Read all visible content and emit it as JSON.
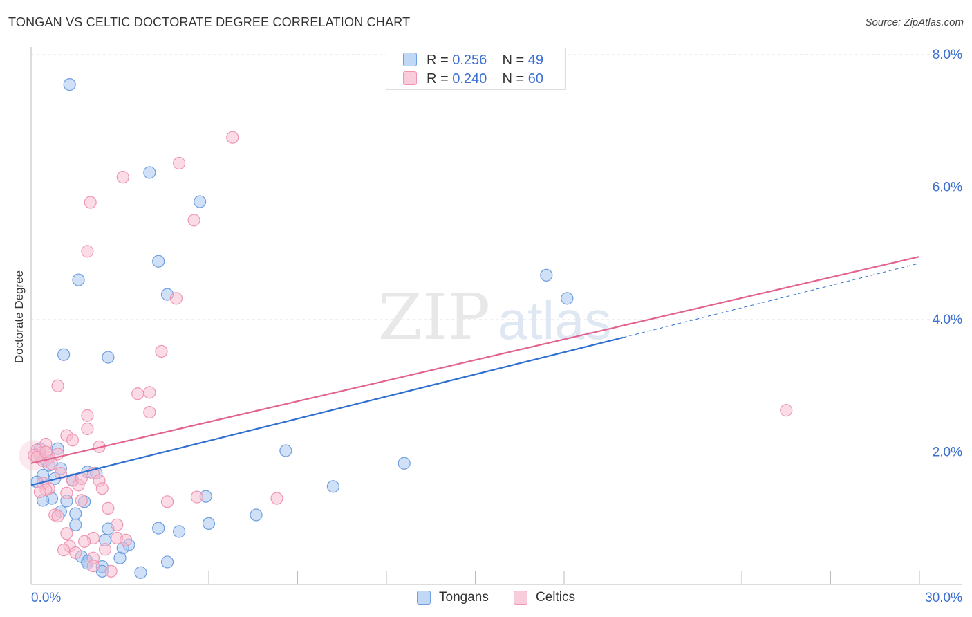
{
  "title": "TONGAN VS CELTIC DOCTORATE DEGREE CORRELATION CHART",
  "source": "Source: ZipAtlas.com",
  "watermark": {
    "zip": "ZIP",
    "atlas": "atlas"
  },
  "colors": {
    "tongans_fill": "#a9c8f0",
    "tongans_stroke": "#6f9ee0",
    "tongans_line": "#2f6fd0",
    "celtics_fill": "#f7bdd0",
    "celtics_stroke": "#ee95b2",
    "celtics_line": "#e2638f",
    "axis_text": "#3b6fd0",
    "grid": "#dddddd"
  },
  "stats": [
    {
      "r_label": "R =",
      "r_value": "0.256",
      "n_label": "N =",
      "n_value": "49"
    },
    {
      "r_label": "R =",
      "r_value": "0.240",
      "n_label": "N =",
      "n_value": "60"
    }
  ],
  "chart_data": {
    "type": "scatter",
    "title": "TONGAN VS CELTIC DOCTORATE DEGREE CORRELATION CHART",
    "xlabel": "",
    "ylabel": "Doctorate Degree",
    "xlim": [
      0,
      30
    ],
    "ylim": [
      0,
      8.3
    ],
    "x_tick_labels": [
      "0.0%",
      "30.0%"
    ],
    "y_ticks": [
      2,
      4,
      6,
      8
    ],
    "y_tick_labels": [
      "2.0%",
      "4.0%",
      "6.0%",
      "8.0%"
    ],
    "grid": true,
    "legend_position": "bottom-center",
    "series": [
      {
        "name": "Tongans",
        "trend": {
          "x0": 0,
          "y0": 1.5,
          "x1": 20.0,
          "y1": 3.73,
          "dash_to_x": 30.0,
          "dash_to_y": 4.85
        },
        "points": [
          [
            1.3,
            7.55
          ],
          [
            4.0,
            6.22
          ],
          [
            5.7,
            5.78
          ],
          [
            4.3,
            4.88
          ],
          [
            1.6,
            4.6
          ],
          [
            4.6,
            4.38
          ],
          [
            17.4,
            4.67
          ],
          [
            18.1,
            4.32
          ],
          [
            1.1,
            3.47
          ],
          [
            2.6,
            3.43
          ],
          [
            8.6,
            2.02
          ],
          [
            12.6,
            1.83
          ],
          [
            0.3,
            1.95
          ],
          [
            0.5,
            1.88
          ],
          [
            0.6,
            1.8
          ],
          [
            1.0,
            1.75
          ],
          [
            1.9,
            1.7
          ],
          [
            2.2,
            1.68
          ],
          [
            0.4,
            1.65
          ],
          [
            0.8,
            1.6
          ],
          [
            1.4,
            1.58
          ],
          [
            0.2,
            1.55
          ],
          [
            10.2,
            1.48
          ],
          [
            0.7,
            1.3
          ],
          [
            0.4,
            1.27
          ],
          [
            1.2,
            1.26
          ],
          [
            1.8,
            1.25
          ],
          [
            5.9,
            1.33
          ],
          [
            1.0,
            1.1
          ],
          [
            1.5,
            1.07
          ],
          [
            7.6,
            1.05
          ],
          [
            6.0,
            0.92
          ],
          [
            1.5,
            0.9
          ],
          [
            4.3,
            0.85
          ],
          [
            2.6,
            0.84
          ],
          [
            5.0,
            0.8
          ],
          [
            2.5,
            0.67
          ],
          [
            3.3,
            0.6
          ],
          [
            3.1,
            0.55
          ],
          [
            1.7,
            0.42
          ],
          [
            3.0,
            0.4
          ],
          [
            1.9,
            0.35
          ],
          [
            1.9,
            0.32
          ],
          [
            4.6,
            0.34
          ],
          [
            2.4,
            0.27
          ],
          [
            2.4,
            0.2
          ],
          [
            3.7,
            0.18
          ],
          [
            0.3,
            2.05
          ],
          [
            0.9,
            2.05
          ]
        ]
      },
      {
        "name": "Celtics",
        "trend": {
          "x0": 0,
          "y0": 1.83,
          "x1": 30.0,
          "y1": 4.95
        },
        "points": [
          [
            6.8,
            6.75
          ],
          [
            5.0,
            6.36
          ],
          [
            3.1,
            6.15
          ],
          [
            2.0,
            5.77
          ],
          [
            5.5,
            5.5
          ],
          [
            1.9,
            5.03
          ],
          [
            4.9,
            4.32
          ],
          [
            4.4,
            3.52
          ],
          [
            0.9,
            3.0
          ],
          [
            4.0,
            2.9
          ],
          [
            3.6,
            2.88
          ],
          [
            1.9,
            2.55
          ],
          [
            4.0,
            2.6
          ],
          [
            25.5,
            2.63
          ],
          [
            1.9,
            2.35
          ],
          [
            1.2,
            2.25
          ],
          [
            1.4,
            2.18
          ],
          [
            0.5,
            2.12
          ],
          [
            2.3,
            2.08
          ],
          [
            0.2,
            2.03
          ],
          [
            0.3,
            1.98
          ],
          [
            0.1,
            1.95
          ],
          [
            0.6,
            1.92
          ],
          [
            0.4,
            1.87
          ],
          [
            0.9,
            1.97
          ],
          [
            0.7,
            1.82
          ],
          [
            2.1,
            1.68
          ],
          [
            1.0,
            1.68
          ],
          [
            1.4,
            1.57
          ],
          [
            2.3,
            1.57
          ],
          [
            1.6,
            1.5
          ],
          [
            0.4,
            1.53
          ],
          [
            0.6,
            1.45
          ],
          [
            2.4,
            1.45
          ],
          [
            0.5,
            1.43
          ],
          [
            0.3,
            1.4
          ],
          [
            1.2,
            1.38
          ],
          [
            5.6,
            1.32
          ],
          [
            8.3,
            1.3
          ],
          [
            1.7,
            1.27
          ],
          [
            4.6,
            1.25
          ],
          [
            2.6,
            1.15
          ],
          [
            0.8,
            1.05
          ],
          [
            0.9,
            1.03
          ],
          [
            2.9,
            0.9
          ],
          [
            1.2,
            0.77
          ],
          [
            2.1,
            0.7
          ],
          [
            2.9,
            0.7
          ],
          [
            3.2,
            0.67
          ],
          [
            1.8,
            0.65
          ],
          [
            1.3,
            0.58
          ],
          [
            1.5,
            0.48
          ],
          [
            1.1,
            0.52
          ],
          [
            2.5,
            0.53
          ],
          [
            2.1,
            0.4
          ],
          [
            2.1,
            0.28
          ],
          [
            2.7,
            0.2
          ],
          [
            0.2,
            1.92
          ],
          [
            0.5,
            2.0
          ],
          [
            1.7,
            1.6
          ]
        ]
      }
    ]
  },
  "legend": [
    {
      "label": "Tongans"
    },
    {
      "label": "Celtics"
    }
  ]
}
